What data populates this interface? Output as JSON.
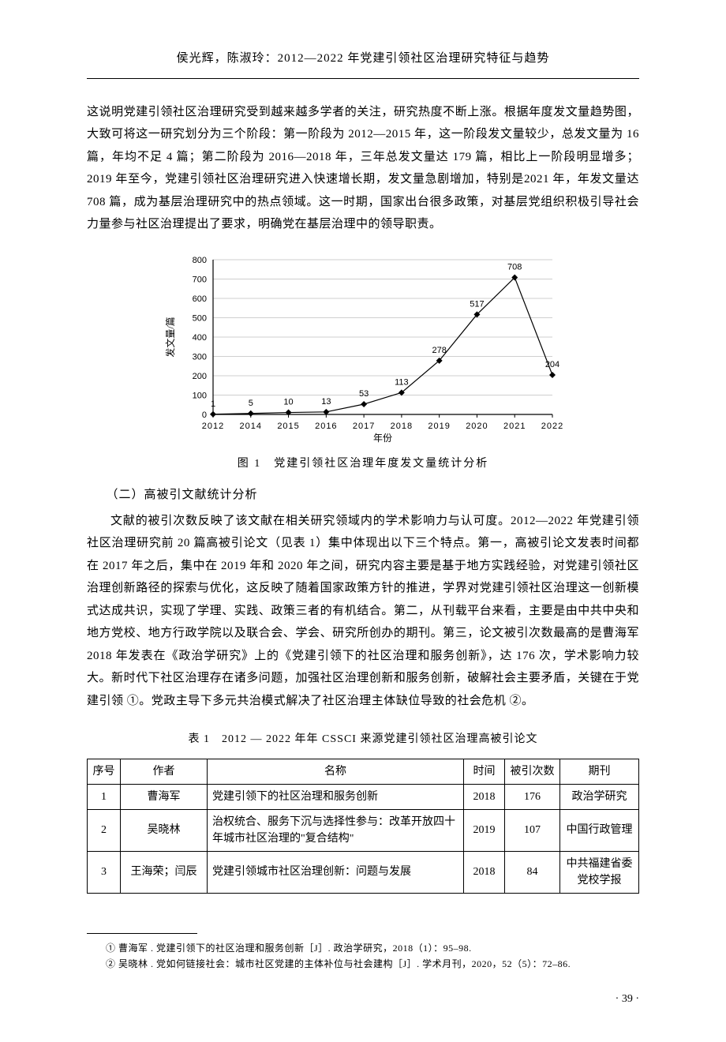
{
  "header": "侯光辉，陈淑玲：2012—2022 年党建引领社区治理研究特征与趋势",
  "para1": "这说明党建引领社区治理研究受到越来越多学者的关注，研究热度不断上涨。根据年度发文量趋势图，大致可将这一研究划分为三个阶段：第一阶段为 2012—2015 年，这一阶段发文量较少，总发文量为 16 篇，年均不足 4 篇；第二阶段为 2016—2018 年，三年总发文量达 179 篇，相比上一阶段明显增多；2019 年至今，党建引领社区治理研究进入快速增长期，发文量急剧增加，特别是2021 年，年发文量达 708 篇，成为基层治理研究中的热点领域。这一时期，国家出台很多政策，对基层党组织积极引导社会力量参与社区治理提出了要求，明确党在基层治理中的领导职责。",
  "chart": {
    "type": "line",
    "years": [
      "2012",
      "2014",
      "2015",
      "2016",
      "2017",
      "2018",
      "2019",
      "2020",
      "2021",
      "2022"
    ],
    "values": [
      1,
      5,
      10,
      13,
      53,
      113,
      278,
      517,
      708,
      204
    ],
    "ylim": [
      0,
      800
    ],
    "ytick_step": 100,
    "yticks": [
      "0",
      "100",
      "200",
      "300",
      "400",
      "500",
      "600",
      "700",
      "800"
    ],
    "ylabel": "发文量/篇",
    "xlabel": "年份",
    "marker": "diamond",
    "marker_fill": "#000000",
    "line_color": "#000000",
    "line_width": 1.2,
    "grid_color": "#bfbfbf",
    "axis_color": "#000000",
    "label_fontsize": 12,
    "tick_fontsize": 11,
    "background": "#ffffff"
  },
  "chart_caption": "图 1　党建引领社区治理年度发文量统计分析",
  "subheading": "（二）高被引文献统计分析",
  "para2": "文献的被引次数反映了该文献在相关研究领域内的学术影响力与认可度。2012—2022 年党建引领社区治理研究前 20 篇高被引论文（见表 1）集中体现出以下三个特点。第一，高被引论文发表时间都在 2017 年之后，集中在 2019 年和 2020 年之间，研究内容主要是基于地方实践经验，对党建引领社区治理创新路径的探索与优化，这反映了随着国家政策方针的推进，学界对党建引领社区治理这一创新模式达成共识，实现了学理、实践、政策三者的有机结合。第二，从刊载平台来看，主要是由中共中央和地方党校、地方行政学院以及联合会、学会、研究所创办的期刊。第三，论文被引次数最高的是曹海军 2018 年发表在《政治学研究》上的《党建引领下的社区治理和服务创新》，达 176 次，学术影响力较大。新时代下社区治理存在诸多问题，加强社区治理创新和服务创新，破解社会主要矛盾，关键在于党建引领 ①。党政主导下多元共治模式解决了社区治理主体缺位导致的社会危机 ②。",
  "table_caption": "表 1　2012 — 2022 年年 CSSCI 来源党建引领社区治理高被引论文",
  "table": {
    "columns": [
      "序号",
      "作者",
      "名称",
      "时间",
      "被引次数",
      "期刊"
    ],
    "rows": [
      [
        "1",
        "曹海军",
        "党建引领下的社区治理和服务创新",
        "2018",
        "176",
        "政治学研究"
      ],
      [
        "2",
        "吴晓林",
        "治权统合、服务下沉与选择性参与：改革开放四十年城市社区治理的\"复合结构\"",
        "2019",
        "107",
        "中国行政管理"
      ],
      [
        "3",
        "王海荣；闫辰",
        "党建引领城市社区治理创新：问题与发展",
        "2018",
        "84",
        "中共福建省委党校学报"
      ]
    ]
  },
  "footnotes": [
    "① 曹海军 . 党建引领下的社区治理和服务创新［J］. 政治学研究，2018（1）：95–98.",
    "② 吴晓林 . 党如何链接社会：城市社区党建的主体补位与社会建构［J］. 学术月刊，2020，52（5）：72–86."
  ],
  "page_number": "· 39 ·"
}
